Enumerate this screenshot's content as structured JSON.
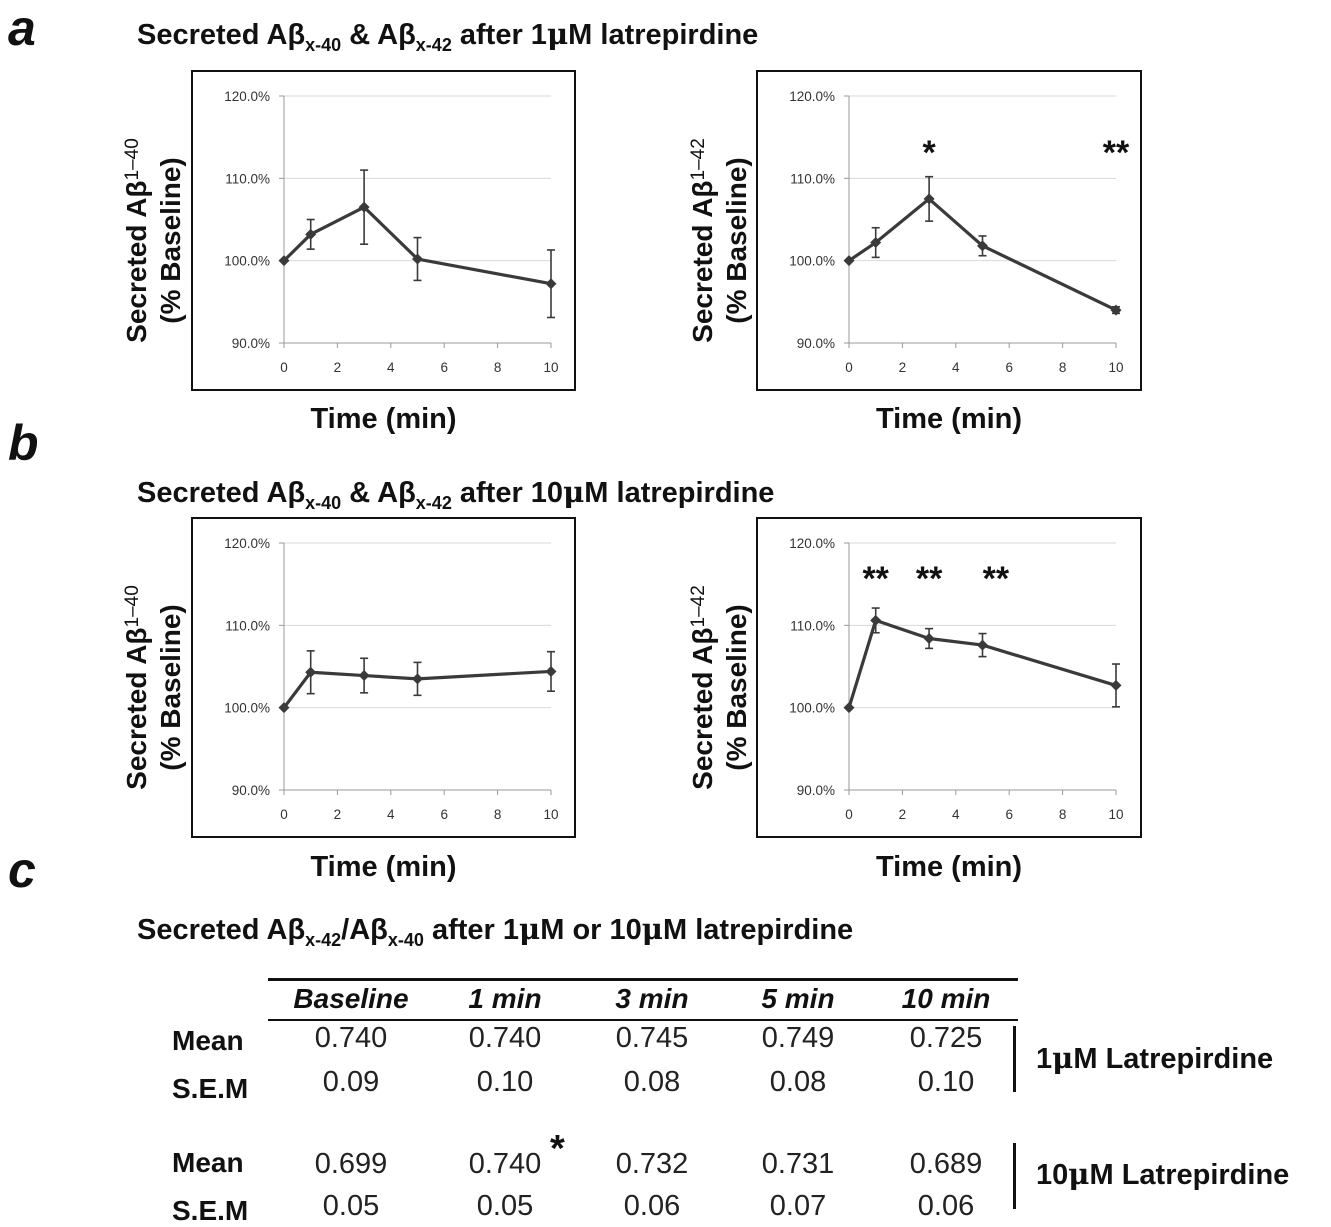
{
  "panels": {
    "a": {
      "letter": "a",
      "title_pre": "Secreted Aβ",
      "title_sub1": "x-40",
      "title_mid": " & Aβ",
      "title_sub2": "x-42",
      "title_post": " after 1",
      "title_mu": "μ",
      "title_end": "M latrepirdine"
    },
    "b": {
      "letter": "b",
      "title_pre": "Secreted Aβ",
      "title_sub1": "x-40",
      "title_mid": " & Aβ",
      "title_sub2": "x-42",
      "title_post": " after 10",
      "title_mu": "μ",
      "title_end": "M latrepirdine"
    },
    "c": {
      "letter": "c",
      "title_pre": "Secreted Aβ",
      "title_sub1": "x-42",
      "title_mid": "/Aβ",
      "title_sub2": "x-40",
      "title_post": " after 1",
      "title_mu": "μ",
      "title_mid2": "M or 10",
      "title_mu2": "μ",
      "title_end": "M latrepirdine"
    }
  },
  "chart_data": [
    {
      "id": "a40",
      "type": "line",
      "xlabel": "Time (min)",
      "ylabel_line1_pre": "Secreted Aβ",
      "ylabel_line1_sub": "1–40",
      "ylabel_line2": "(% Baseline)",
      "x": [
        0,
        1,
        3,
        5,
        10
      ],
      "y": [
        100.0,
        103.2,
        106.5,
        100.2,
        97.2
      ],
      "err": [
        0,
        1.8,
        4.5,
        2.6,
        4.1
      ],
      "xlim": [
        0,
        10
      ],
      "ylim": [
        90,
        120
      ],
      "xticks": [
        "0",
        "2",
        "4",
        "6",
        "8",
        "10"
      ],
      "yticks": [
        "90.0%",
        "100.0%",
        "110.0%",
        "120.0%"
      ],
      "grid": true,
      "significance": []
    },
    {
      "id": "a42",
      "type": "line",
      "xlabel": "Time (min)",
      "ylabel_line1_pre": "Secreted Aβ",
      "ylabel_line1_sub": "1–42",
      "ylabel_line2": "(% Baseline)",
      "x": [
        0,
        1,
        3,
        5,
        10
      ],
      "y": [
        100.0,
        102.2,
        107.5,
        101.8,
        94.0
      ],
      "err": [
        0,
        1.8,
        2.7,
        1.2,
        0.4
      ],
      "xlim": [
        0,
        10
      ],
      "ylim": [
        90,
        120
      ],
      "xticks": [
        "0",
        "2",
        "4",
        "6",
        "8",
        "10"
      ],
      "yticks": [
        "90.0%",
        "100.0%",
        "110.0%",
        "120.0%"
      ],
      "grid": true,
      "significance": [
        {
          "x": 3,
          "label": "*"
        },
        {
          "x": 10,
          "label": "**"
        }
      ]
    },
    {
      "id": "b40",
      "type": "line",
      "xlabel": "Time (min)",
      "ylabel_line1_pre": "Secreted Aβ",
      "ylabel_line1_sub": "1–40",
      "ylabel_line2": "(% Baseline)",
      "x": [
        0,
        1,
        3,
        5,
        10
      ],
      "y": [
        100.0,
        104.3,
        103.9,
        103.5,
        104.4
      ],
      "err": [
        0,
        2.6,
        2.1,
        2.0,
        2.4
      ],
      "xlim": [
        0,
        10
      ],
      "ylim": [
        90,
        120
      ],
      "xticks": [
        "0",
        "2",
        "4",
        "6",
        "8",
        "10"
      ],
      "yticks": [
        "90.0%",
        "100.0%",
        "110.0%",
        "120.0%"
      ],
      "grid": true,
      "significance": []
    },
    {
      "id": "b42",
      "type": "line",
      "xlabel": "Time (min)",
      "ylabel_line1_pre": "Secreted Aβ",
      "ylabel_line1_sub": "1–42",
      "ylabel_line2": "(% Baseline)",
      "x": [
        0,
        1,
        3,
        5,
        10
      ],
      "y": [
        100.0,
        110.6,
        108.4,
        107.6,
        102.7
      ],
      "err": [
        0,
        1.5,
        1.2,
        1.4,
        2.6
      ],
      "xlim": [
        0,
        10
      ],
      "ylim": [
        90,
        120
      ],
      "xticks": [
        "0",
        "2",
        "4",
        "6",
        "8",
        "10"
      ],
      "yticks": [
        "90.0%",
        "100.0%",
        "110.0%",
        "120.0%"
      ],
      "grid": true,
      "significance": [
        {
          "x": 1,
          "label": "**"
        },
        {
          "x": 3,
          "label": "**"
        },
        {
          "x": 5.5,
          "label": "**"
        }
      ]
    }
  ],
  "table": {
    "headers": [
      "Baseline",
      "1 min",
      "3 min",
      "5 min",
      "10 min"
    ],
    "groups": [
      {
        "label_pre": "1",
        "label_mu": "μ",
        "label_post": "M Latrepirdine",
        "rows": [
          {
            "label": "Mean",
            "values": [
              "0.740",
              "0.740",
              "0.745",
              "0.749",
              "0.725"
            ]
          },
          {
            "label": "S.E.M",
            "values": [
              "0.09",
              "0.10",
              "0.08",
              "0.08",
              "0.10"
            ]
          }
        ]
      },
      {
        "label_pre": "10",
        "label_mu": "μ",
        "label_post": "M Latrepirdine",
        "rows": [
          {
            "label": "Mean",
            "values": [
              "0.699",
              "0.740",
              "0.732",
              "0.731",
              "0.689"
            ]
          },
          {
            "label": "S.E.M",
            "values": [
              "0.05",
              "0.05",
              "0.06",
              "0.07",
              "0.06"
            ]
          }
        ]
      }
    ],
    "significance_star": "*"
  },
  "colors": {
    "line": "#3a3a3a",
    "grid": "#d9d9d9",
    "frame": "#111111"
  }
}
